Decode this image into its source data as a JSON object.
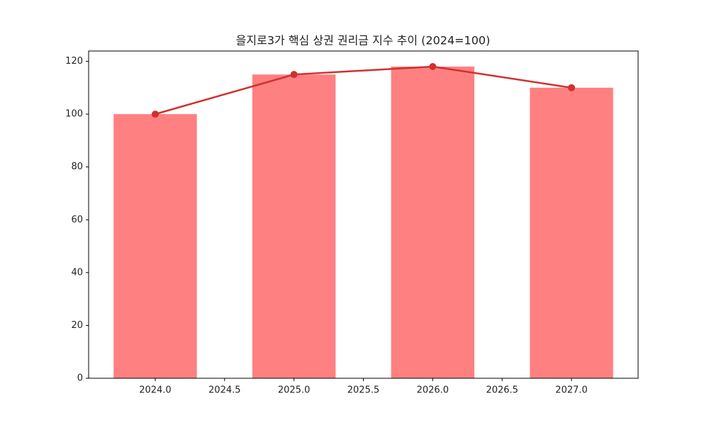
{
  "chart_data": {
    "type": "bar",
    "title": "을지로3가 핵심 상권 권리금 지수 추이 (2024=100)",
    "x": [
      2024,
      2025,
      2026,
      2027
    ],
    "series": [
      {
        "type": "bar",
        "color": "#ff8080",
        "values": [
          100,
          115,
          118,
          110
        ]
      },
      {
        "type": "line",
        "color": "#d03030",
        "values": [
          100,
          115,
          118,
          110
        ]
      }
    ],
    "xlim": [
      2023.52,
      2027.48
    ],
    "xticks": [
      {
        "value": 2024,
        "label": "2024.0"
      },
      2024.5,
      {
        "value": 2025,
        "label": "2025.0"
      },
      2025.5,
      {
        "value": 2026,
        "label": "2026.0"
      },
      2026.5,
      {
        "value": 2027,
        "label": "2027.0"
      }
    ],
    "ylim": [
      0,
      123.9
    ],
    "yticks": [
      0,
      20,
      40,
      60,
      80,
      100,
      120
    ],
    "grid": false
  }
}
